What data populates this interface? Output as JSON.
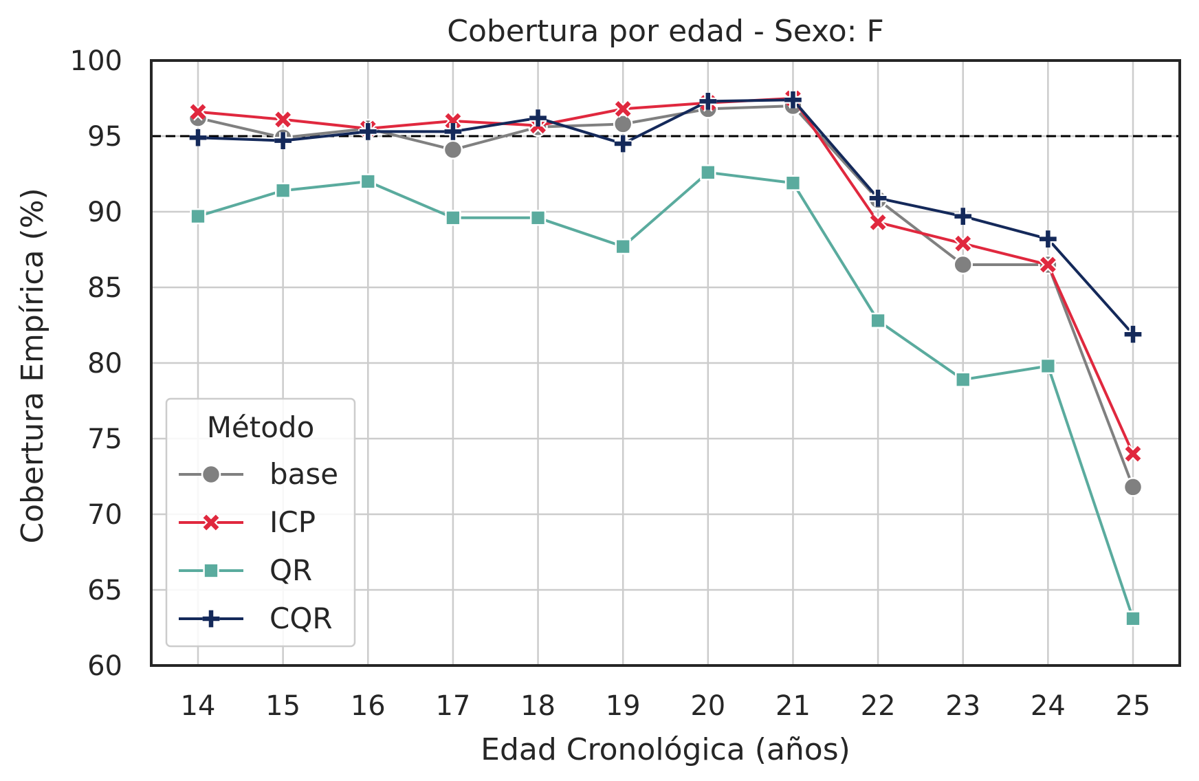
{
  "chart_data": {
    "type": "line",
    "title": "Cobertura por edad - Sexo: F",
    "xlabel": "Edad Cronológica (años)",
    "ylabel": "Cobertura Empírica (%)",
    "x": [
      14,
      15,
      16,
      17,
      18,
      19,
      20,
      21,
      22,
      23,
      24,
      25
    ],
    "x_tick_labels": [
      "14",
      "15",
      "16",
      "17",
      "18",
      "19",
      "20",
      "21",
      "22",
      "23",
      "24",
      "25"
    ],
    "ylim": [
      60,
      100
    ],
    "y_ticks": [
      60,
      65,
      70,
      75,
      80,
      85,
      90,
      95,
      100
    ],
    "y_tick_labels": [
      "60",
      "65",
      "70",
      "75",
      "80",
      "85",
      "90",
      "95",
      "100"
    ],
    "grid": true,
    "reference_line": {
      "y": 95,
      "style": "dashed",
      "color": "#000000"
    },
    "legend": {
      "title": "Método",
      "placement": "lower-left"
    },
    "series": [
      {
        "name": "base",
        "color": "#808080",
        "marker": "circle",
        "values": [
          96.2,
          94.9,
          95.5,
          94.1,
          95.6,
          95.8,
          96.8,
          97.0,
          90.8,
          86.5,
          86.5,
          71.8
        ]
      },
      {
        "name": "ICP",
        "color": "#e0283e",
        "marker": "x",
        "values": [
          96.6,
          96.1,
          95.5,
          96.0,
          95.7,
          96.8,
          97.2,
          97.5,
          89.3,
          87.9,
          86.5,
          74.0
        ]
      },
      {
        "name": "QR",
        "color": "#5aab9e",
        "marker": "square",
        "values": [
          89.7,
          91.4,
          92.0,
          89.6,
          89.6,
          87.7,
          92.6,
          91.9,
          82.8,
          78.9,
          79.8,
          63.1
        ]
      },
      {
        "name": "CQR",
        "color": "#14295a",
        "marker": "plus",
        "values": [
          94.9,
          94.7,
          95.3,
          95.3,
          96.2,
          94.5,
          97.3,
          97.4,
          90.9,
          89.7,
          88.2,
          81.9
        ]
      }
    ]
  }
}
